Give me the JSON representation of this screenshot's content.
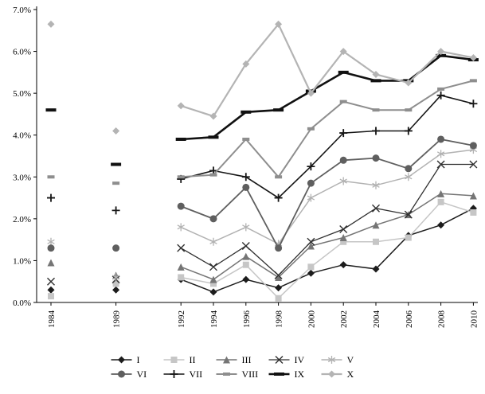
{
  "figure": {
    "background": "#ffffff"
  },
  "chart_data": {
    "type": "line",
    "title": "",
    "xlabel": "",
    "ylabel": "",
    "grid": false,
    "legend_position": "bottom-two-rows",
    "legend_rows": [
      [
        "I",
        "II",
        "III",
        "IV",
        "V"
      ],
      [
        "VI",
        "VII",
        "VIII",
        "IX",
        "X"
      ]
    ],
    "categories": [
      "1984",
      "1989",
      "1992",
      "1994",
      "1996",
      "1998",
      "2000",
      "2002",
      "2004",
      "2006",
      "2008",
      "2010"
    ],
    "slots": [
      0,
      2,
      4,
      5,
      6,
      7,
      8,
      9,
      10,
      11,
      12,
      13
    ],
    "line_start_index": 2,
    "y_ticks": [
      "0.0%",
      "1.0%",
      "2.0%",
      "3.0%",
      "4.0%",
      "5.0%",
      "6.0%",
      "7.0%"
    ],
    "ylim_percent": [
      0,
      7
    ],
    "series": [
      {
        "name": "I",
        "marker": "diamond",
        "color": "#1c1c1c",
        "line_width": 1.5,
        "marker_size": 9,
        "values": [
          0.3,
          0.3,
          0.55,
          0.25,
          0.55,
          0.35,
          0.7,
          0.9,
          0.8,
          1.6,
          1.85,
          2.25
        ]
      },
      {
        "name": "II",
        "marker": "square",
        "color": "#c6c6c6",
        "line_width": 1.5,
        "marker_size": 8,
        "values": [
          0.15,
          0.45,
          0.6,
          0.45,
          0.9,
          0.1,
          0.85,
          1.45,
          1.45,
          1.55,
          2.4,
          2.15
        ]
      },
      {
        "name": "III",
        "marker": "triangle",
        "color": "#757575",
        "line_width": 1.5,
        "marker_size": 9,
        "values": [
          0.95,
          0.65,
          0.85,
          0.55,
          1.1,
          0.6,
          1.35,
          1.55,
          1.85,
          2.1,
          2.6,
          2.55
        ]
      },
      {
        "name": "IV",
        "marker": "x",
        "color": "#303030",
        "line_width": 1.3,
        "marker_size": 9,
        "values": [
          0.5,
          0.55,
          1.3,
          0.85,
          1.35,
          0.65,
          1.45,
          1.75,
          2.25,
          2.1,
          3.3,
          3.3
        ]
      },
      {
        "name": "V",
        "marker": "asterisk",
        "color": "#b2b2b2",
        "line_width": 1.5,
        "marker_size": 10,
        "values": [
          1.45,
          0.6,
          1.8,
          1.45,
          1.8,
          1.4,
          2.5,
          2.9,
          2.8,
          3.0,
          3.55,
          3.65
        ]
      },
      {
        "name": "VI",
        "marker": "circle",
        "color": "#5f5f5f",
        "line_width": 1.8,
        "marker_size": 9,
        "values": [
          1.3,
          1.3,
          2.3,
          2.0,
          2.75,
          1.3,
          2.85,
          3.4,
          3.45,
          3.2,
          3.9,
          3.75
        ]
      },
      {
        "name": "VII",
        "marker": "plus",
        "color": "#161616",
        "line_width": 1.6,
        "marker_size": 10,
        "values": [
          2.5,
          2.2,
          2.95,
          3.15,
          3.0,
          2.5,
          3.25,
          4.05,
          4.1,
          4.1,
          4.95,
          4.75
        ]
      },
      {
        "name": "VIII",
        "marker": "dash",
        "color": "#8e8e8e",
        "line_width": 2.0,
        "marker_size": 9,
        "values": [
          3.0,
          2.85,
          3.0,
          3.05,
          3.9,
          3.0,
          4.15,
          4.8,
          4.6,
          4.6,
          5.1,
          5.3
        ]
      },
      {
        "name": "IX",
        "marker": "dash",
        "color": "#111111",
        "line_width": 2.6,
        "marker_size": 13,
        "values": [
          4.6,
          3.3,
          3.9,
          3.95,
          4.55,
          4.6,
          5.05,
          5.5,
          5.3,
          5.3,
          5.9,
          5.8
        ]
      },
      {
        "name": "X",
        "marker": "diamond",
        "color": "#b4b4b4",
        "line_width": 2.2,
        "marker_size": 9,
        "values": [
          6.65,
          4.1,
          4.7,
          4.45,
          5.7,
          6.65,
          5.0,
          6.0,
          5.45,
          5.25,
          6.0,
          5.85
        ]
      }
    ]
  }
}
